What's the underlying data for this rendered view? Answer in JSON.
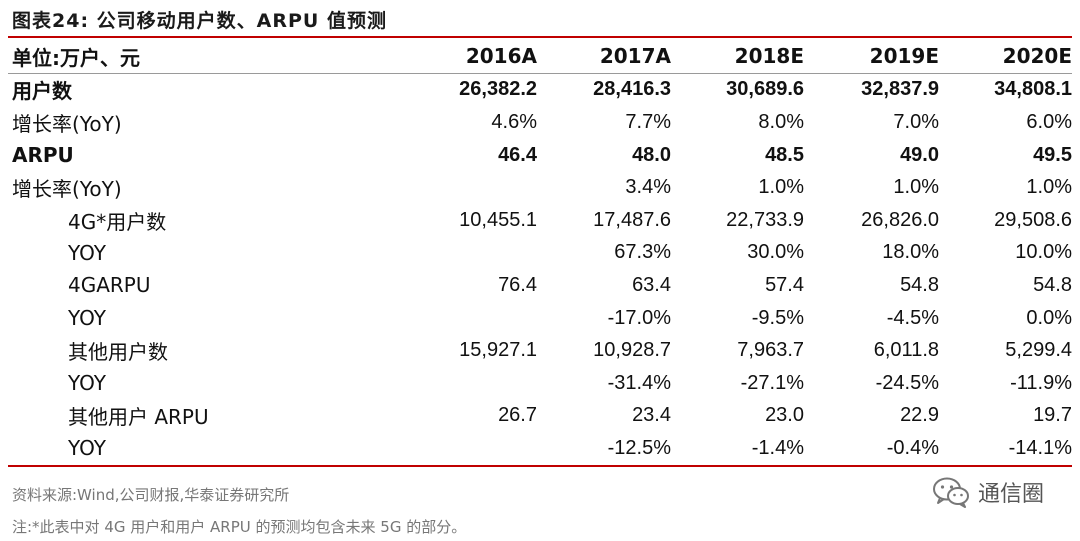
{
  "title": "图表24:  公司移动用户数、ARPU 值预测",
  "header": {
    "unit_label": "单位:万户、元",
    "years": [
      "2016A",
      "2017A",
      "2018E",
      "2019E",
      "2020E"
    ]
  },
  "rows": [
    {
      "label": "用户数",
      "values": [
        "26,382.2",
        "28,416.3",
        "30,689.6",
        "32,837.9",
        "34,808.1"
      ]
    },
    {
      "label": "增长率(YoY)",
      "values": [
        "4.6%",
        "7.7%",
        "8.0%",
        "7.0%",
        "6.0%"
      ]
    },
    {
      "label": "ARPU",
      "values": [
        "46.4",
        "48.0",
        "48.5",
        "49.0",
        "49.5"
      ]
    },
    {
      "label": "增长率(YoY)",
      "values": [
        "",
        "3.4%",
        "1.0%",
        "1.0%",
        "1.0%"
      ]
    },
    {
      "label": "4G*用户数",
      "values": [
        "10,455.1",
        "17,487.6",
        "22,733.9",
        "26,826.0",
        "29,508.6"
      ]
    },
    {
      "label": "YOY",
      "values": [
        "",
        "67.3%",
        "30.0%",
        "18.0%",
        "10.0%"
      ]
    },
    {
      "label": "4GARPU",
      "values": [
        "76.4",
        "63.4",
        "57.4",
        "54.8",
        "54.8"
      ]
    },
    {
      "label": "YOY",
      "values": [
        "",
        "-17.0%",
        "-9.5%",
        "-4.5%",
        "0.0%"
      ]
    },
    {
      "label": "其他用户数",
      "values": [
        "15,927.1",
        "10,928.7",
        "7,963.7",
        "6,011.8",
        "5,299.4"
      ]
    },
    {
      "label": "YOY",
      "values": [
        "",
        "-31.4%",
        "-27.1%",
        "-24.5%",
        "-11.9%"
      ]
    },
    {
      "label": "其他用户 ARPU",
      "values": [
        "26.7",
        "23.4",
        "23.0",
        "22.9",
        "19.7"
      ]
    },
    {
      "label": "YOY",
      "values": [
        "",
        "-12.5%",
        "-1.4%",
        "-0.4%",
        "-14.1%"
      ]
    }
  ],
  "footer": {
    "source": "资料来源:Wind,公司财报,华泰证券研究所",
    "note": "注:*此表中对 4G 用户和用户 ARPU 的预测均包含未来 5G 的部分。",
    "watermark": "通信圈",
    "watermark_icon": "wechat-icon"
  },
  "colors": {
    "accent_red": "#c00000",
    "text": "#111111",
    "muted": "#777777"
  }
}
